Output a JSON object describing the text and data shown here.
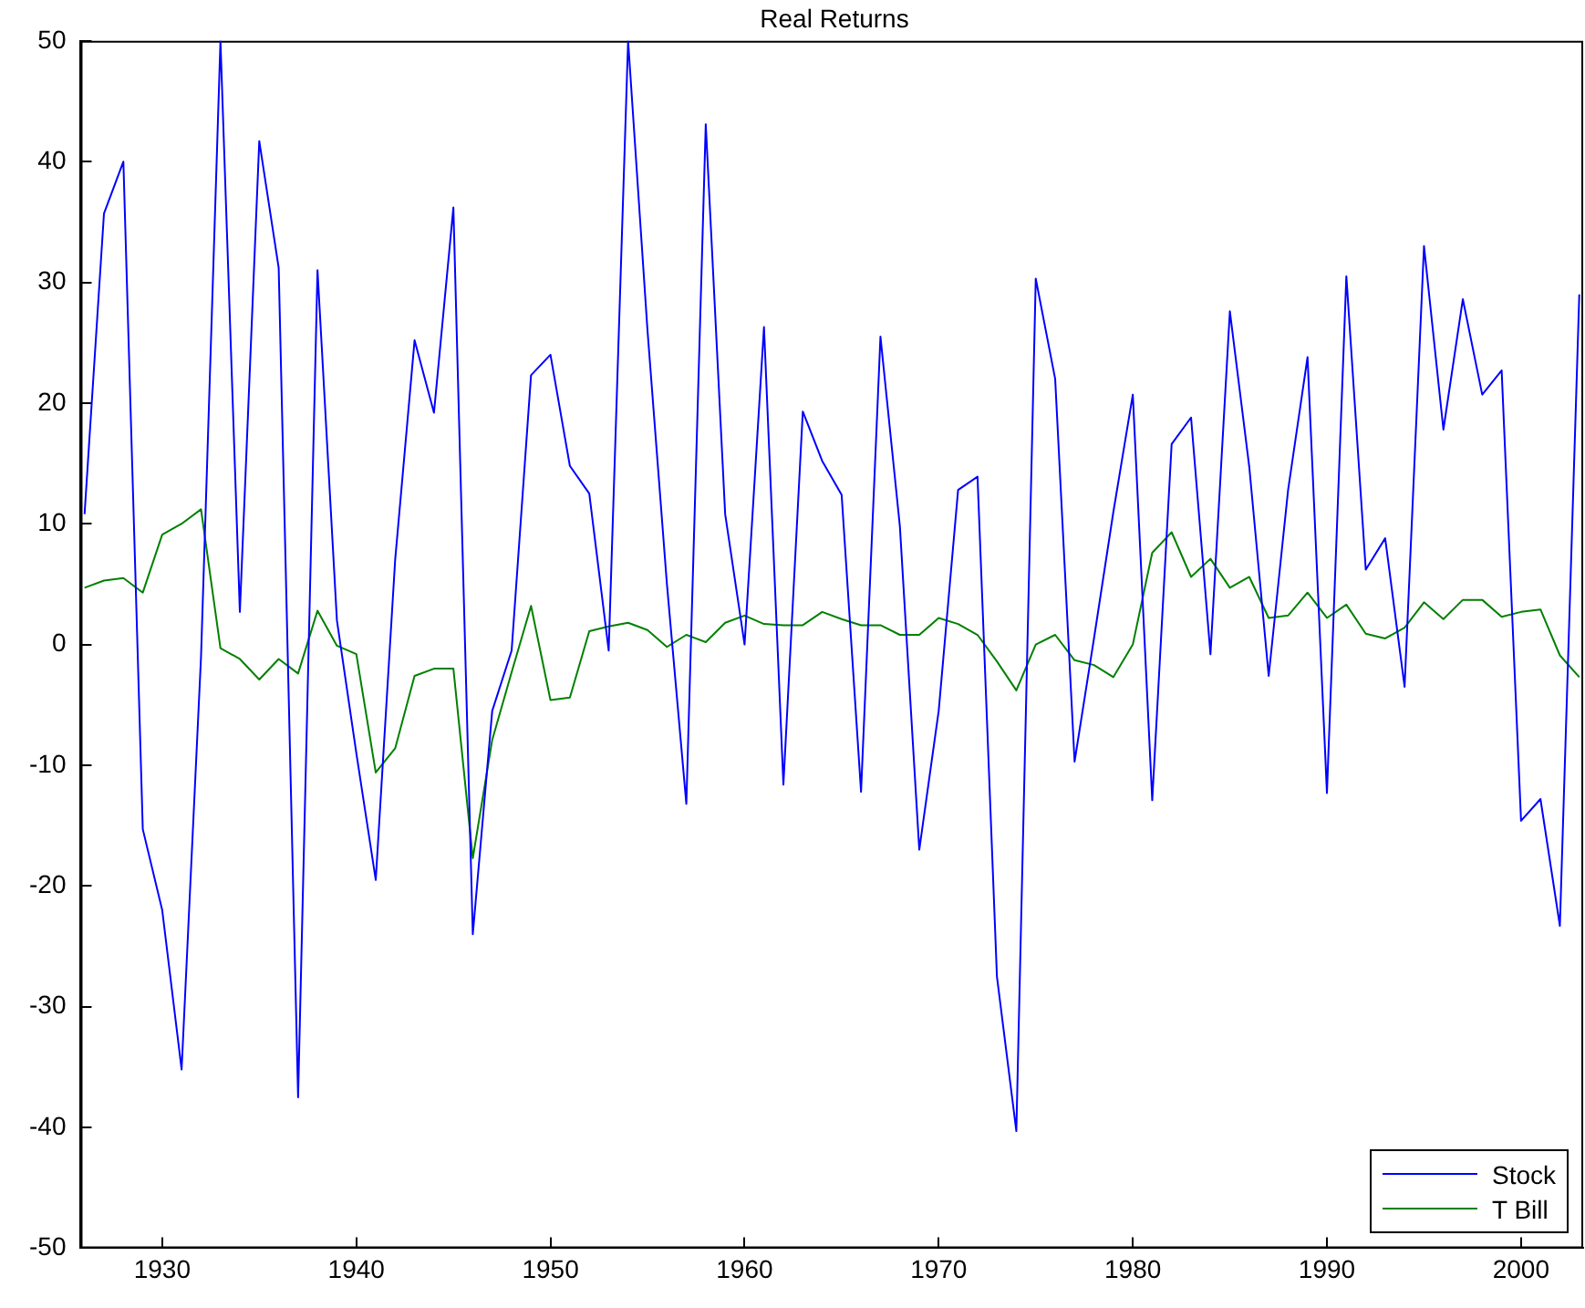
{
  "chart_data": {
    "type": "line",
    "title": "Real Returns",
    "x": [
      1926,
      1927,
      1928,
      1929,
      1930,
      1931,
      1932,
      1933,
      1934,
      1935,
      1936,
      1937,
      1938,
      1939,
      1940,
      1941,
      1942,
      1943,
      1944,
      1945,
      1946,
      1947,
      1948,
      1949,
      1950,
      1951,
      1952,
      1953,
      1954,
      1955,
      1956,
      1957,
      1958,
      1959,
      1960,
      1961,
      1962,
      1963,
      1964,
      1965,
      1966,
      1967,
      1968,
      1969,
      1970,
      1971,
      1972,
      1973,
      1974,
      1975,
      1976,
      1977,
      1978,
      1979,
      1980,
      1981,
      1982,
      1983,
      1984,
      1985,
      1986,
      1987,
      1988,
      1989,
      1990,
      1991,
      1992,
      1993,
      1994,
      1995,
      1996,
      1997,
      1998,
      1999,
      2000,
      2001,
      2002,
      2003
    ],
    "series": [
      {
        "name": "Stock",
        "color": "#0000ff",
        "values": [
          10.8,
          35.7,
          40,
          -15.3,
          -22,
          -35.2,
          -1,
          50,
          2.7,
          41.7,
          31.2,
          -37.5,
          31,
          2,
          -9,
          -19.5,
          7,
          25.2,
          19.2,
          36.2,
          -24,
          -5.5,
          -0.5,
          22.3,
          24,
          14.8,
          12.5,
          -0.5,
          50,
          26,
          5,
          -13.2,
          43.1,
          10.8,
          0,
          26.3,
          -11.6,
          19.3,
          15.2,
          12.4,
          -12.2,
          25.5,
          9.8,
          -17,
          -5.5,
          12.8,
          13.9,
          -27.5,
          -40.3,
          30.3,
          22,
          -9.7,
          0.5,
          11,
          20.7,
          -12.9,
          16.6,
          18.8,
          -0.8,
          27.6,
          14.7,
          -2.6,
          12.8,
          23.8,
          -12.3,
          30.5,
          6.2,
          8.8,
          -3.5,
          33,
          17.8,
          28.6,
          20.7,
          22.7,
          -14.6,
          -12.8,
          -23.3,
          29
        ]
      },
      {
        "name": "T Bill",
        "color": "#008000",
        "values": [
          4.7,
          5.3,
          5.5,
          4.3,
          9.1,
          10,
          11.2,
          -0.3,
          -1.2,
          -2.9,
          -1.2,
          -2.4,
          2.8,
          -0.1,
          -0.8,
          -10.6,
          -8.6,
          -2.6,
          -2,
          -2,
          -17.7,
          -7.9,
          -2.3,
          3.2,
          -4.6,
          -4.4,
          1.1,
          1.5,
          1.8,
          1.2,
          -0.2,
          0.8,
          0.2,
          1.8,
          2.4,
          1.7,
          1.6,
          1.6,
          2.7,
          2.1,
          1.6,
          1.6,
          0.8,
          0.8,
          2.2,
          1.7,
          0.8,
          -1.4,
          -3.8,
          0,
          0.8,
          -1.3,
          -1.7,
          -2.7,
          0,
          7.6,
          9.3,
          5.6,
          7.1,
          4.7,
          5.6,
          2.2,
          2.4,
          4.3,
          2.2,
          3.3,
          0.9,
          0.5,
          1.4,
          3.5,
          2.1,
          3.7,
          3.7,
          2.3,
          2.7,
          2.9,
          -0.9,
          -2.7
        ]
      }
    ],
    "xlim": [
      1925.8,
      2003.2
    ],
    "xticks": [
      1930,
      1940,
      1950,
      1960,
      1970,
      1980,
      1990,
      2000
    ],
    "ylim": [
      -50,
      50
    ],
    "yticks": [
      -50,
      -40,
      -30,
      -20,
      -10,
      0,
      10,
      20,
      30,
      40,
      50
    ],
    "grid": false,
    "legend": "bottom right",
    "marker": "none",
    "line_style": "solid"
  }
}
